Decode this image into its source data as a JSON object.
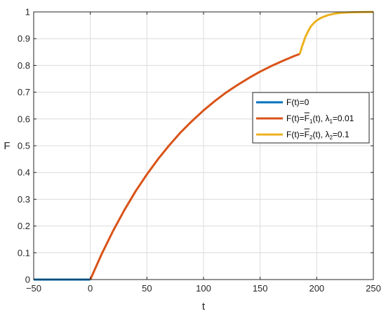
{
  "chart_data": {
    "type": "line",
    "xlabel": "t",
    "ylabel": "F",
    "xlim": [
      -50,
      250
    ],
    "ylim": [
      0,
      1
    ],
    "xticks": [
      -50,
      0,
      50,
      100,
      150,
      200,
      250
    ],
    "yticks": [
      0,
      0.1,
      0.2,
      0.3,
      0.4,
      0.5,
      0.6,
      0.7,
      0.8,
      0.9,
      1
    ],
    "xtick_labels": [
      "−50",
      "0",
      "50",
      "100",
      "150",
      "200",
      "250"
    ],
    "ytick_labels": [
      "0",
      "0.1",
      "0.2",
      "0.3",
      "0.4",
      "0.5",
      "0.6",
      "0.7",
      "0.8",
      "0.9",
      "1"
    ],
    "grid": true,
    "legend_position": "right",
    "series": [
      {
        "name": "F(t)=0",
        "color": "#0072BD",
        "x": [
          -50,
          0
        ],
        "y": [
          0,
          0
        ]
      },
      {
        "name": "F(t)=F̄1(t), λ1=0.01",
        "color": "#D95319",
        "x": [
          0,
          10,
          20,
          30,
          40,
          50,
          60,
          70,
          80,
          90,
          100,
          110,
          120,
          130,
          140,
          150,
          160,
          170,
          180,
          185
        ],
        "y": [
          0,
          0.095,
          0.181,
          0.259,
          0.33,
          0.393,
          0.451,
          0.503,
          0.551,
          0.593,
          0.632,
          0.667,
          0.699,
          0.727,
          0.753,
          0.777,
          0.798,
          0.817,
          0.835,
          0.843
        ]
      },
      {
        "name": "F(t)=F̄2(t), λ2=0.1",
        "color": "#EDB120",
        "x": [
          185,
          187,
          190,
          193,
          195,
          198,
          200,
          203,
          205,
          210,
          215,
          220,
          225,
          230,
          240,
          250
        ],
        "y": [
          0.843,
          0.871,
          0.907,
          0.933,
          0.947,
          0.961,
          0.968,
          0.976,
          0.98,
          0.988,
          0.993,
          0.996,
          0.9975,
          0.9985,
          0.9995,
          1.0
        ]
      }
    ],
    "legend": [
      {
        "prefix": "F(t)=0",
        "color": "#0072BD"
      },
      {
        "prefix": "F(t)=",
        "fn": "F",
        "fn_sub": "1",
        "mid": "(t), ",
        "lambda": "λ",
        "lambda_sub": "1",
        "suffix": "=0.01",
        "color": "#D95319"
      },
      {
        "prefix": "F(t)=",
        "fn": "F",
        "fn_sub": "2",
        "mid": "(t), ",
        "lambda": "λ",
        "lambda_sub": "2",
        "suffix": "=0.1",
        "color": "#EDB120"
      }
    ]
  }
}
